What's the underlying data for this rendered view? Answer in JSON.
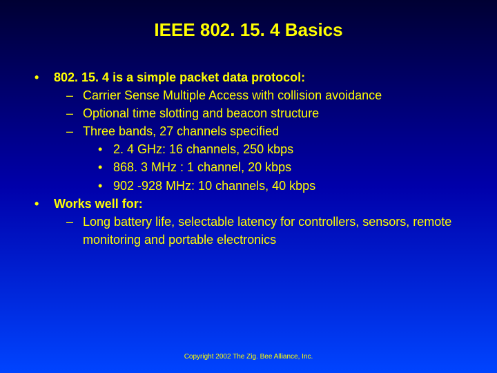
{
  "title": "IEEE 802. 15. 4 Basics",
  "title_color": "#ffff00",
  "title_fontsize": 26,
  "body_color": "#ffff00",
  "body_fontsize": 18,
  "background_gradient": [
    "#000033",
    "#0000aa",
    "#0044ff"
  ],
  "bullets": {
    "b1": {
      "mark": "•",
      "text": "802. 15. 4 is a simple packet data protocol:"
    },
    "b1a": {
      "mark": "–",
      "text": "Carrier Sense Multiple Access with collision avoidance"
    },
    "b1b": {
      "mark": "–",
      "text": "Optional time slotting and beacon structure"
    },
    "b1c": {
      "mark": "–",
      "text": "Three bands, 27 channels specified"
    },
    "b1c1": {
      "mark": "•",
      "text": "2. 4 GHz: 16 channels, 250 kbps"
    },
    "b1c2": {
      "mark": "•",
      "text": "868. 3 MHz : 1 channel, 20 kbps"
    },
    "b1c3": {
      "mark": "•",
      "text": "902 -928 MHz: 10 channels, 40 kbps"
    },
    "b2": {
      "mark": "•",
      "text": "Works well for:"
    },
    "b2a": {
      "mark": "–",
      "text": "Long battery life, selectable latency for controllers, sensors, remote monitoring and portable electronics"
    }
  },
  "footer": "Copyright 2002 The Zig. Bee Alliance, Inc."
}
